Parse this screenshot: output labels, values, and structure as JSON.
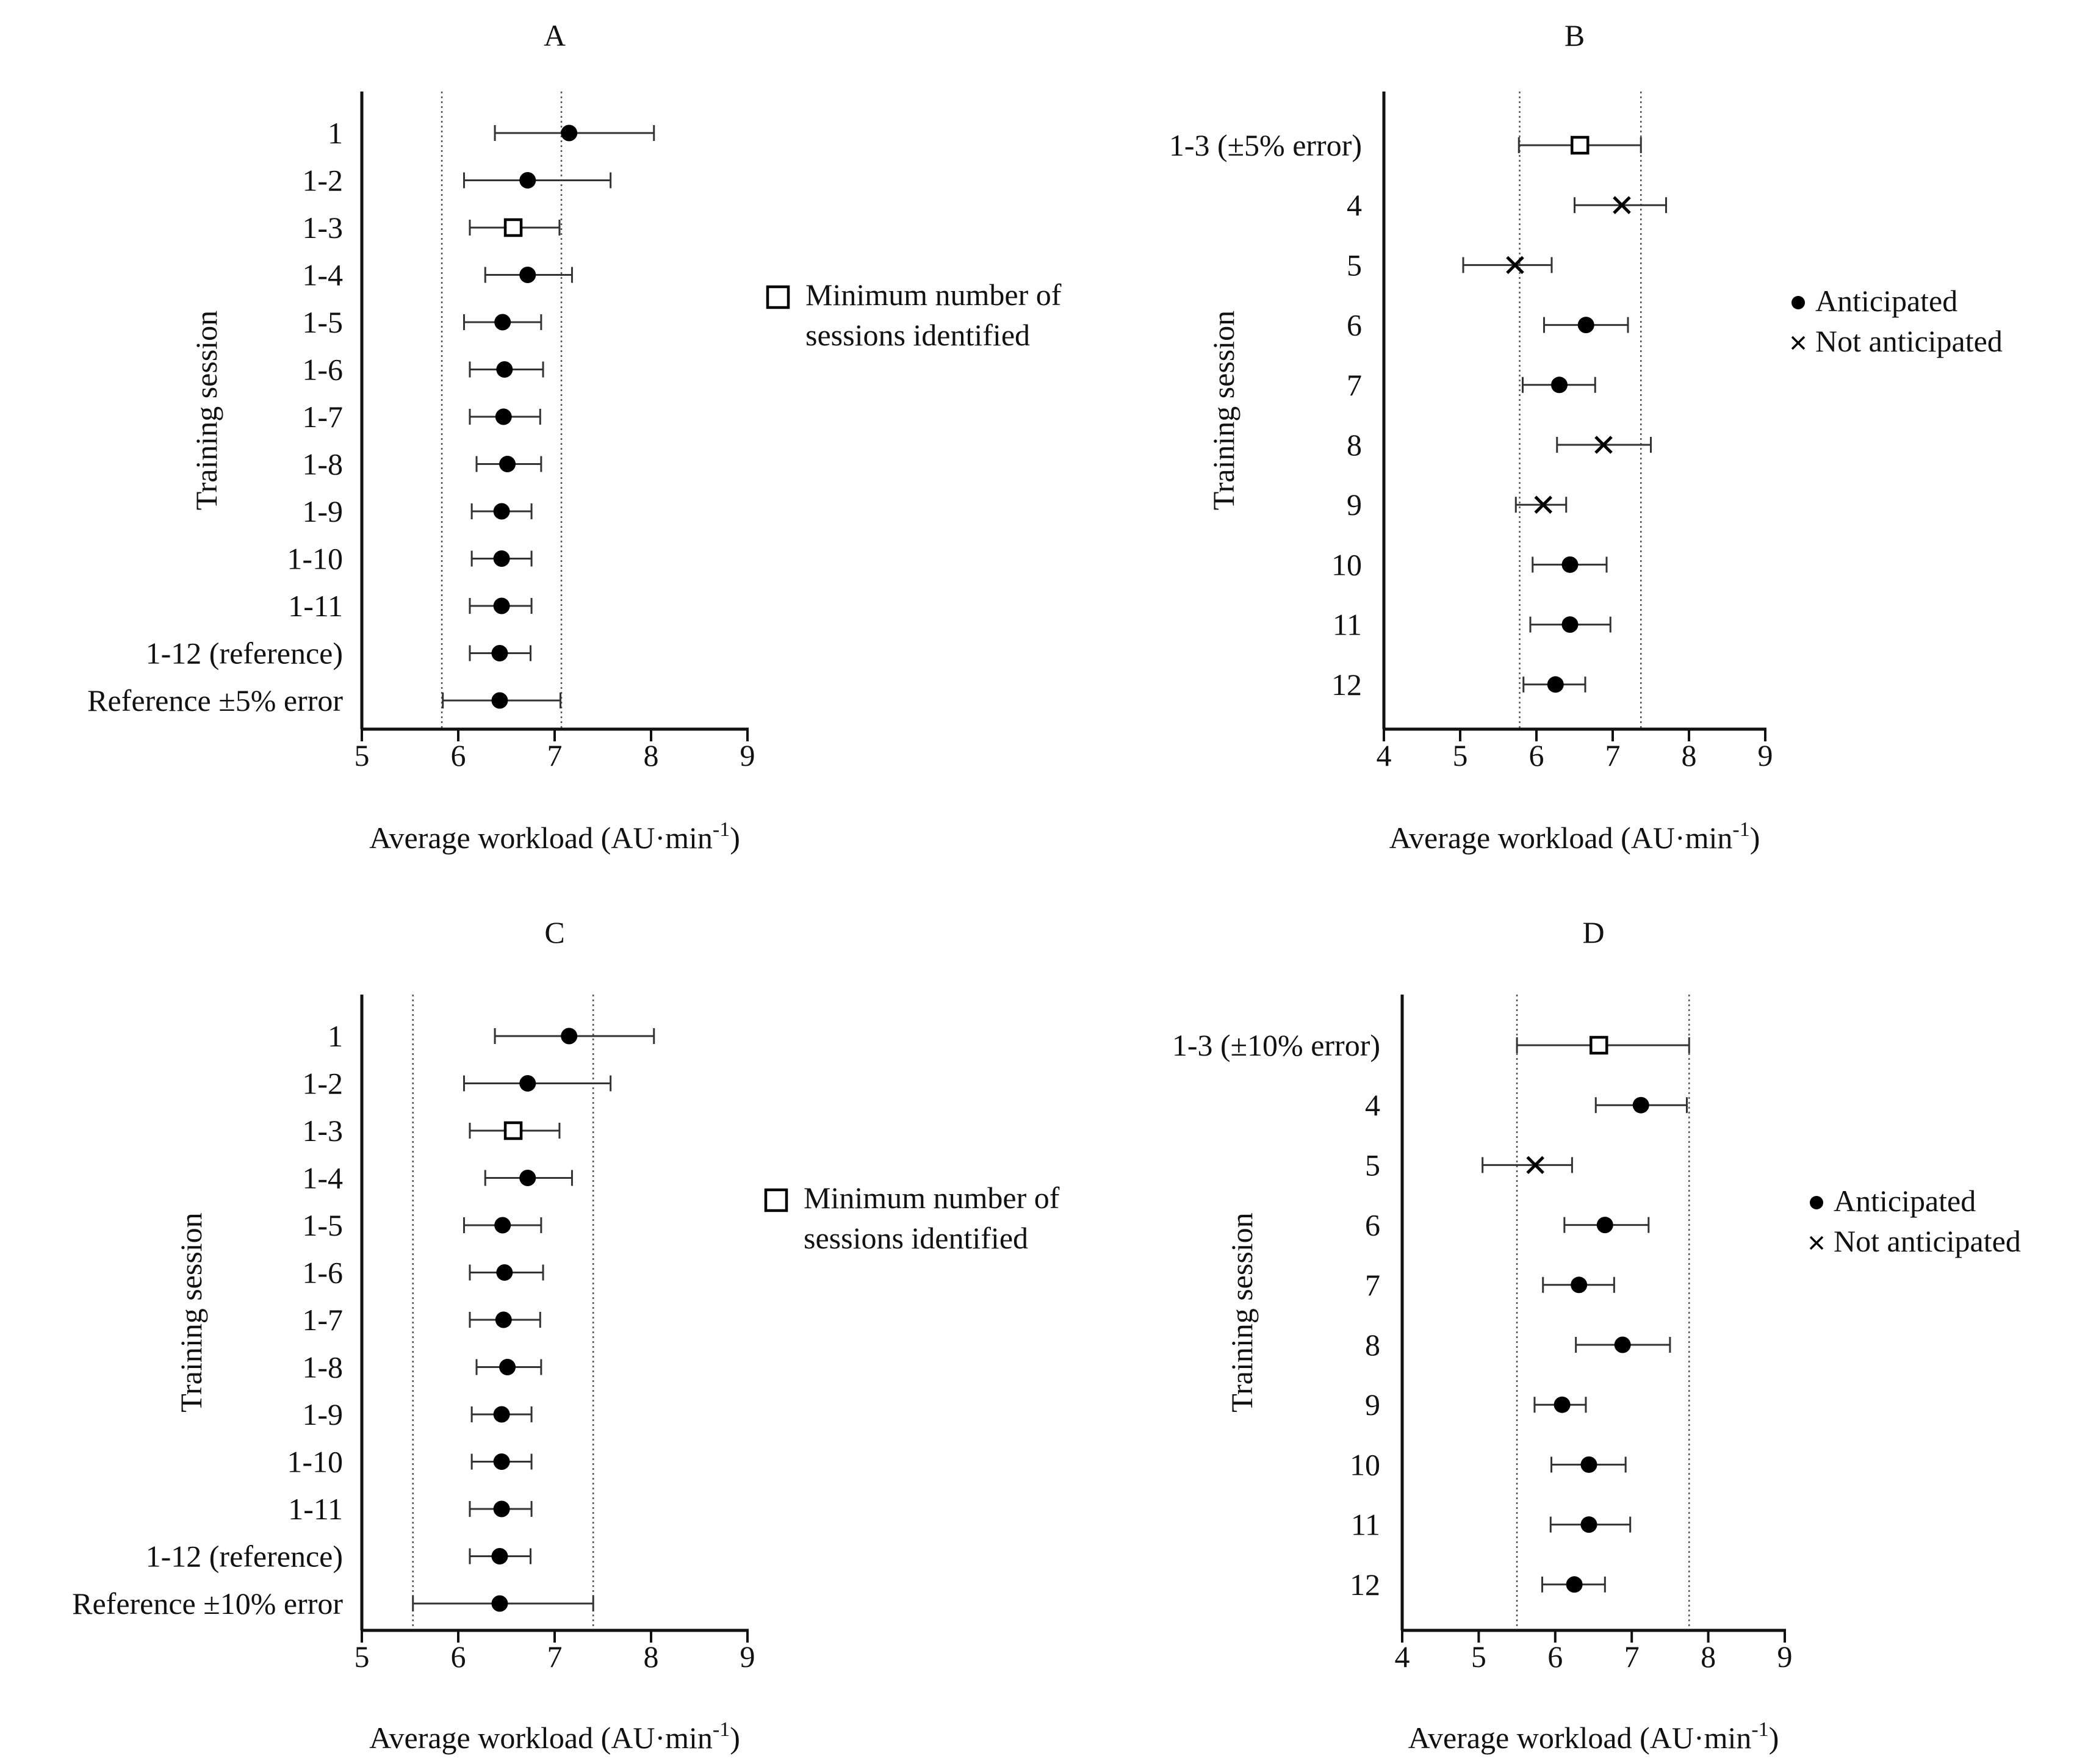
{
  "chart_data": [
    {
      "type": "scatter",
      "title": "A",
      "xlabel": "Average workload (AU·min⁻¹)",
      "ylabel": "Training session",
      "xlim": [
        5,
        9
      ],
      "xticks": [
        5,
        6,
        7,
        8,
        9
      ],
      "reference_lines": [
        5.83,
        7.07
      ],
      "points": [
        {
          "label": "1",
          "value": 7.15,
          "low": 6.38,
          "high": 8.03,
          "marker": "circle"
        },
        {
          "label": "1-2",
          "value": 6.72,
          "low": 6.06,
          "high": 7.58,
          "marker": "circle"
        },
        {
          "label": "1-3",
          "value": 6.57,
          "low": 6.12,
          "high": 7.05,
          "marker": "square"
        },
        {
          "label": "1-4",
          "value": 6.72,
          "low": 6.28,
          "high": 7.18,
          "marker": "circle"
        },
        {
          "label": "1-5",
          "value": 6.46,
          "low": 6.06,
          "high": 6.86,
          "marker": "circle"
        },
        {
          "label": "1-6",
          "value": 6.48,
          "low": 6.12,
          "high": 6.88,
          "marker": "circle"
        },
        {
          "label": "1-7",
          "value": 6.47,
          "low": 6.12,
          "high": 6.85,
          "marker": "circle"
        },
        {
          "label": "1-8",
          "value": 6.51,
          "low": 6.19,
          "high": 6.86,
          "marker": "circle"
        },
        {
          "label": "1-9",
          "value": 6.45,
          "low": 6.14,
          "high": 6.76,
          "marker": "circle"
        },
        {
          "label": "1-10",
          "value": 6.45,
          "low": 6.14,
          "high": 6.76,
          "marker": "circle"
        },
        {
          "label": "1-11",
          "value": 6.45,
          "low": 6.12,
          "high": 6.76,
          "marker": "circle"
        },
        {
          "label": "1-12 (reference)",
          "value": 6.43,
          "low": 6.12,
          "high": 6.75,
          "marker": "circle"
        },
        {
          "label": "Reference ±5% error",
          "value": 6.43,
          "low": 5.84,
          "high": 7.06,
          "marker": "circle"
        }
      ],
      "legend": [
        {
          "marker": "square",
          "lines": [
            "Minimum number of",
            "sessions identified"
          ]
        }
      ]
    },
    {
      "type": "scatter",
      "title": "B",
      "xlabel": "Average workload (AU·min⁻¹)",
      "ylabel": "Training session",
      "xlim": [
        4,
        9
      ],
      "xticks": [
        4,
        5,
        6,
        7,
        8,
        9
      ],
      "reference_lines": [
        5.78,
        7.37
      ],
      "points": [
        {
          "label": "1-3 (±5% error)",
          "value": 6.57,
          "low": 5.77,
          "high": 7.37,
          "marker": "square"
        },
        {
          "label": "4",
          "value": 7.12,
          "low": 6.5,
          "high": 7.7,
          "marker": "x"
        },
        {
          "label": "5",
          "value": 5.72,
          "low": 5.04,
          "high": 6.2,
          "marker": "x"
        },
        {
          "label": "6",
          "value": 6.65,
          "low": 6.1,
          "high": 7.2,
          "marker": "circle"
        },
        {
          "label": "7",
          "value": 6.3,
          "low": 5.82,
          "high": 6.77,
          "marker": "circle"
        },
        {
          "label": "8",
          "value": 6.88,
          "low": 6.27,
          "high": 7.5,
          "marker": "x"
        },
        {
          "label": "9",
          "value": 6.09,
          "low": 5.73,
          "high": 6.39,
          "marker": "x"
        },
        {
          "label": "10",
          "value": 6.44,
          "low": 5.95,
          "high": 6.92,
          "marker": "circle"
        },
        {
          "label": "11",
          "value": 6.44,
          "low": 5.92,
          "high": 6.97,
          "marker": "circle"
        },
        {
          "label": "12",
          "value": 6.25,
          "low": 5.83,
          "high": 6.64,
          "marker": "circle"
        }
      ],
      "legend": [
        {
          "marker": "circle",
          "lines": [
            "Anticipated"
          ]
        },
        {
          "marker": "x",
          "lines": [
            "Not anticipated"
          ]
        }
      ]
    },
    {
      "type": "scatter",
      "title": "C",
      "xlabel": "Average workload (AU·min⁻¹)",
      "ylabel": "Training session",
      "xlim": [
        5,
        9
      ],
      "xticks": [
        5,
        6,
        7,
        8,
        9
      ],
      "reference_lines": [
        5.53,
        7.4
      ],
      "points": [
        {
          "label": "1",
          "value": 7.15,
          "low": 6.38,
          "high": 8.03,
          "marker": "circle"
        },
        {
          "label": "1-2",
          "value": 6.72,
          "low": 6.06,
          "high": 7.58,
          "marker": "circle"
        },
        {
          "label": "1-3",
          "value": 6.57,
          "low": 6.12,
          "high": 7.05,
          "marker": "square"
        },
        {
          "label": "1-4",
          "value": 6.72,
          "low": 6.28,
          "high": 7.18,
          "marker": "circle"
        },
        {
          "label": "1-5",
          "value": 6.46,
          "low": 6.06,
          "high": 6.86,
          "marker": "circle"
        },
        {
          "label": "1-6",
          "value": 6.48,
          "low": 6.12,
          "high": 6.88,
          "marker": "circle"
        },
        {
          "label": "1-7",
          "value": 6.47,
          "low": 6.12,
          "high": 6.85,
          "marker": "circle"
        },
        {
          "label": "1-8",
          "value": 6.51,
          "low": 6.19,
          "high": 6.86,
          "marker": "circle"
        },
        {
          "label": "1-9",
          "value": 6.45,
          "low": 6.14,
          "high": 6.76,
          "marker": "circle"
        },
        {
          "label": "1-10",
          "value": 6.45,
          "low": 6.14,
          "high": 6.76,
          "marker": "circle"
        },
        {
          "label": "1-11",
          "value": 6.45,
          "low": 6.12,
          "high": 6.76,
          "marker": "circle"
        },
        {
          "label": "1-12 (reference)",
          "value": 6.43,
          "low": 6.12,
          "high": 6.75,
          "marker": "circle"
        },
        {
          "label": "Reference ±10% error",
          "value": 6.43,
          "low": 5.53,
          "high": 7.4,
          "marker": "circle"
        }
      ],
      "legend": [
        {
          "marker": "square",
          "lines": [
            "Minimum number of",
            "sessions identified"
          ]
        }
      ]
    },
    {
      "type": "scatter",
      "title": "D",
      "xlabel": "Average workload (AU·min⁻¹)",
      "ylabel": "Training session",
      "xlim": [
        4,
        9
      ],
      "xticks": [
        4,
        5,
        6,
        7,
        8,
        9
      ],
      "reference_lines": [
        5.5,
        7.75
      ],
      "points": [
        {
          "label": "1-3 (±10% error)",
          "value": 6.57,
          "low": 5.5,
          "high": 7.75,
          "marker": "square"
        },
        {
          "label": "4",
          "value": 7.12,
          "low": 6.53,
          "high": 7.72,
          "marker": "circle"
        },
        {
          "label": "5",
          "value": 5.74,
          "low": 5.05,
          "high": 6.22,
          "marker": "x"
        },
        {
          "label": "6",
          "value": 6.65,
          "low": 6.12,
          "high": 7.22,
          "marker": "circle"
        },
        {
          "label": "7",
          "value": 6.31,
          "low": 5.84,
          "high": 6.77,
          "marker": "circle"
        },
        {
          "label": "8",
          "value": 6.88,
          "low": 6.27,
          "high": 7.5,
          "marker": "circle"
        },
        {
          "label": "9",
          "value": 6.09,
          "low": 5.73,
          "high": 6.4,
          "marker": "circle"
        },
        {
          "label": "10",
          "value": 6.44,
          "low": 5.95,
          "high": 6.92,
          "marker": "circle"
        },
        {
          "label": "11",
          "value": 6.44,
          "low": 5.94,
          "high": 6.98,
          "marker": "circle"
        },
        {
          "label": "12",
          "value": 6.25,
          "low": 5.83,
          "high": 6.65,
          "marker": "circle"
        }
      ],
      "legend": [
        {
          "marker": "circle",
          "lines": [
            "Anticipated"
          ]
        },
        {
          "marker": "x",
          "lines": [
            "Not anticipated"
          ]
        }
      ]
    }
  ]
}
